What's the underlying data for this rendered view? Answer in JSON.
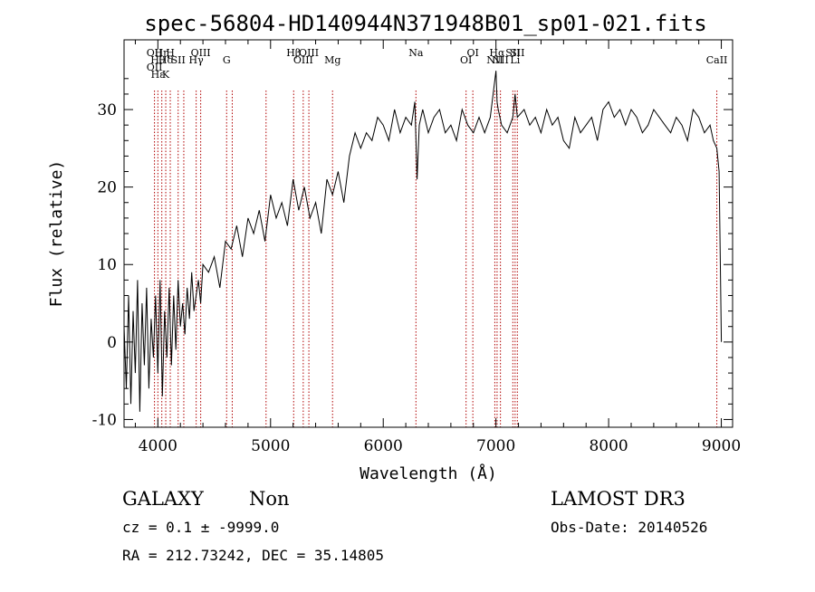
{
  "chart_data": {
    "type": "line",
    "title": "spec-56804-HD140944N371948B01_sp01-021.fits",
    "xlabel": "Wavelength (Å)",
    "ylabel": "Flux (relative)",
    "xlim": [
      3700,
      9100
    ],
    "ylim": [
      -11,
      39
    ],
    "xticks": [
      4000,
      5000,
      6000,
      7000,
      8000,
      9000
    ],
    "yticks": [
      -10,
      0,
      10,
      20,
      30
    ],
    "grid": false,
    "line_color": "#000000",
    "marker_color": "#b00000",
    "series": [
      {
        "x": [
          3700,
          3720,
          3740,
          3760,
          3780,
          3800,
          3820,
          3840,
          3860,
          3880,
          3900,
          3920,
          3940,
          3960,
          3980,
          4000,
          4020,
          4040,
          4060,
          4080,
          4100,
          4120,
          4140,
          4160,
          4180,
          4200,
          4220,
          4240,
          4260,
          4280,
          4300,
          4320,
          4340,
          4360,
          4380,
          4400,
          4450,
          4500,
          4550,
          4600,
          4650,
          4700,
          4750,
          4800,
          4850,
          4900,
          4950,
          5000,
          5050,
          5100,
          5150,
          5200,
          5250,
          5300,
          5350,
          5400,
          5450,
          5500,
          5550,
          5600,
          5650,
          5700,
          5750,
          5800,
          5850,
          5900,
          5950,
          6000,
          6050,
          6100,
          6150,
          6200,
          6250,
          6280,
          6300,
          6320,
          6350,
          6400,
          6450,
          6500,
          6550,
          6600,
          6650,
          6700,
          6750,
          6800,
          6850,
          6900,
          6950,
          7000,
          7010,
          7020,
          7050,
          7100,
          7150,
          7170,
          7190,
          7250,
          7300,
          7350,
          7400,
          7450,
          7500,
          7550,
          7600,
          7650,
          7700,
          7750,
          7800,
          7850,
          7900,
          7950,
          8000,
          8050,
          8100,
          8150,
          8200,
          8250,
          8300,
          8350,
          8400,
          8450,
          8500,
          8550,
          8600,
          8650,
          8700,
          8750,
          8800,
          8850,
          8900,
          8930,
          8960,
          8980,
          9000
        ],
        "y": [
          2,
          -6,
          6,
          -8,
          4,
          -4,
          8,
          -9,
          5,
          -3,
          7,
          -6,
          3,
          -2,
          6,
          -4,
          8,
          -7,
          4,
          -2,
          7,
          -3,
          6,
          -1,
          8,
          2,
          5,
          1,
          7,
          3,
          9,
          4,
          6,
          8,
          5,
          10,
          9,
          11,
          7,
          13,
          12,
          15,
          11,
          16,
          14,
          17,
          13,
          19,
          16,
          18,
          15,
          21,
          17,
          20,
          16,
          18,
          14,
          21,
          19,
          22,
          18,
          24,
          27,
          25,
          27,
          26,
          29,
          28,
          26,
          30,
          27,
          29,
          28,
          31,
          21,
          28,
          30,
          27,
          29,
          30,
          27,
          28,
          26,
          30,
          28,
          27,
          29,
          27,
          29,
          35,
          31,
          30,
          28,
          27,
          29,
          32,
          29,
          30,
          28,
          29,
          27,
          30,
          28,
          29,
          26,
          25,
          29,
          27,
          28,
          29,
          26,
          30,
          31,
          29,
          30,
          28,
          30,
          29,
          27,
          28,
          30,
          29,
          28,
          27,
          29,
          28,
          26,
          30,
          29,
          27,
          28,
          26,
          25,
          22,
          0
        ]
      }
    ],
    "lines": [
      {
        "x": 3970,
        "labels": [
          "OII",
          "OII"
        ]
      },
      {
        "x": 4000,
        "labels": [
          "Hθ",
          "Hε"
        ]
      },
      {
        "x": 4035,
        "labels": [
          "Hη"
        ]
      },
      {
        "x": 4070,
        "labels": [
          "Hδ",
          "K"
        ]
      },
      {
        "x": 4110,
        "labels": [
          "H"
        ]
      },
      {
        "x": 4180,
        "labels": [
          "SII"
        ]
      },
      {
        "x": 4230,
        "labels": [
          ""
        ]
      },
      {
        "x": 4340,
        "labels": [
          "Hγ"
        ]
      },
      {
        "x": 4380,
        "labels": [
          "OIII"
        ]
      },
      {
        "x": 4610,
        "labels": [
          "G"
        ]
      },
      {
        "x": 4660,
        "labels": [
          ""
        ]
      },
      {
        "x": 4960,
        "labels": [
          ""
        ]
      },
      {
        "x": 5205,
        "labels": [
          "Hβ"
        ]
      },
      {
        "x": 5290,
        "labels": [
          "OIII"
        ]
      },
      {
        "x": 5340,
        "labels": [
          "OIII"
        ]
      },
      {
        "x": 5550,
        "labels": [
          "Mg"
        ]
      },
      {
        "x": 6290,
        "labels": [
          "Na"
        ]
      },
      {
        "x": 6735,
        "labels": [
          "OI"
        ]
      },
      {
        "x": 6795,
        "labels": [
          "OI"
        ]
      },
      {
        "x": 6990,
        "labels": [
          "NII"
        ]
      },
      {
        "x": 7010,
        "labels": [
          "Hα"
        ]
      },
      {
        "x": 7040,
        "labels": [
          "NII"
        ]
      },
      {
        "x": 7150,
        "labels": [
          "SII"
        ]
      },
      {
        "x": 7170,
        "labels": [
          "Li"
        ]
      },
      {
        "x": 7190,
        "labels": [
          "SII"
        ]
      },
      {
        "x": 8960,
        "labels": [
          "CaII"
        ]
      }
    ]
  },
  "info": {
    "object_class": "GALAXY",
    "subclass": "Non",
    "survey": "LAMOST DR3",
    "cz": "cz = 0.1 ± -9999.0",
    "obs_date": "Obs-Date: 20140526",
    "radec": "RA = 212.73242, DEC =  35.14805"
  }
}
